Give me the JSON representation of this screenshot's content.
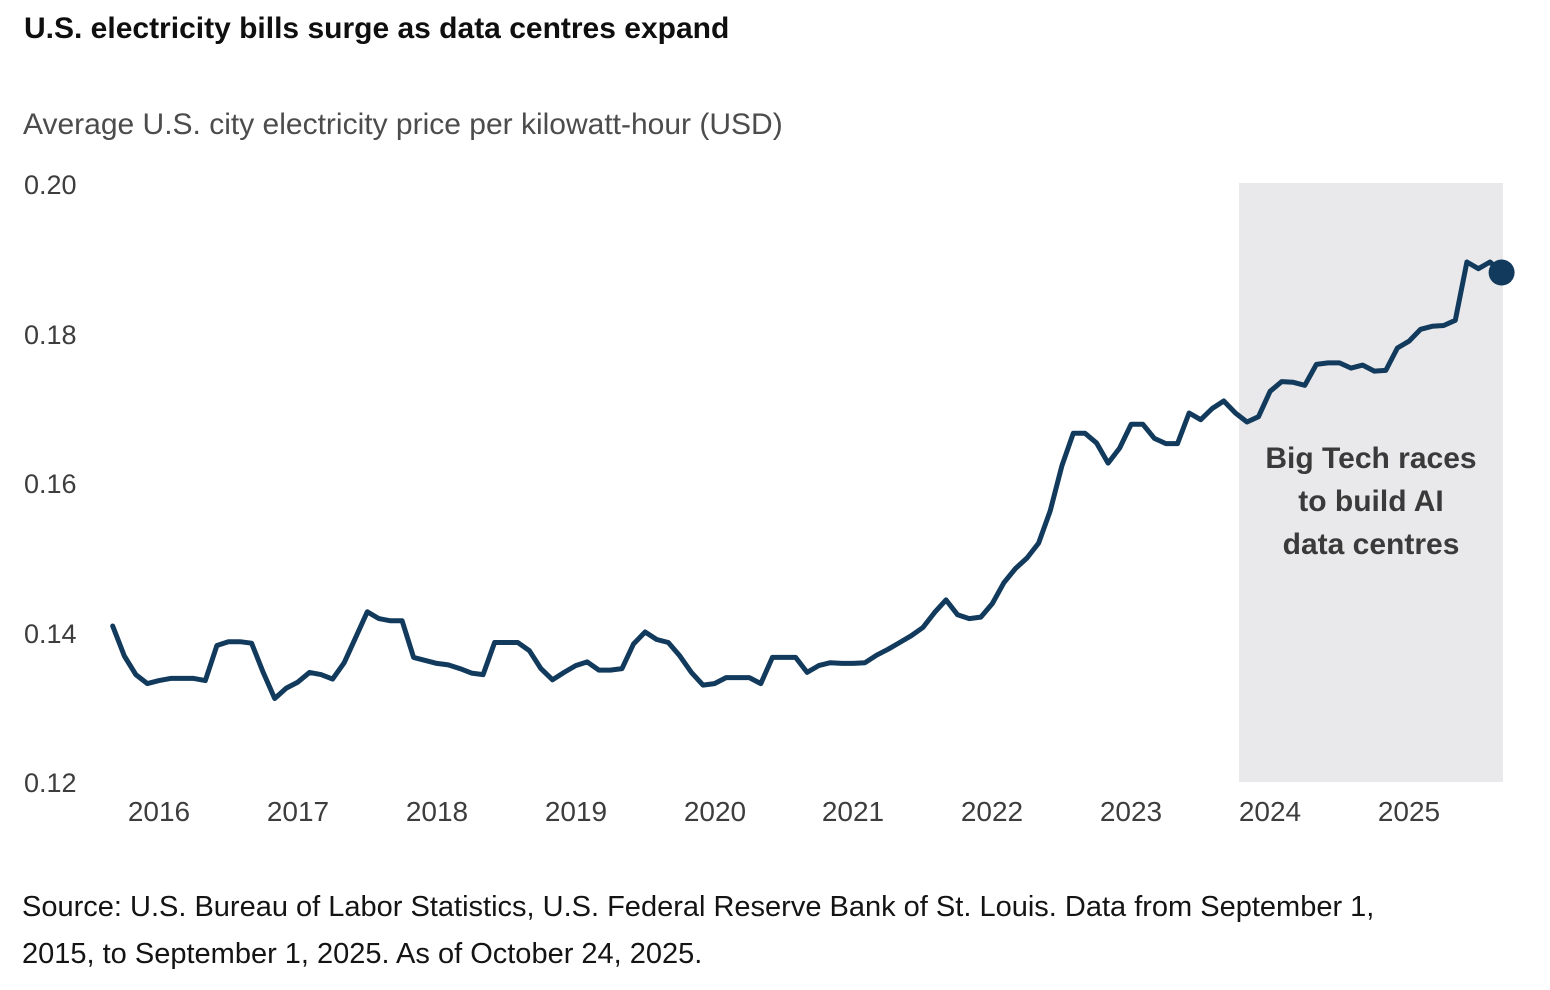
{
  "header": {
    "title": "U.S. electricity bills surge as data centres expand",
    "subtitle": "Average U.S. city electricity price per kilowatt-hour (USD)"
  },
  "annotation": {
    "text": "Big Tech races\nto build AI\ndata centres"
  },
  "source": {
    "text": "Source: U.S. Bureau of Labor Statistics, U.S. Federal Reserve Bank of St. Louis. Data from September 1,\n2015, to September 1, 2025. As of October 24, 2025."
  },
  "chart_data": {
    "type": "line",
    "title": "U.S. electricity bills surge as data centres expand",
    "ylabel": "Average U.S. city electricity price per kilowatt-hour (USD)",
    "xlabel": "",
    "grid": false,
    "legend": "none",
    "ylim": [
      0.12,
      0.2
    ],
    "y_tick_values": [
      0.2,
      0.18,
      0.16,
      0.14,
      0.12
    ],
    "y_tick_labels": [
      "0.20",
      "0.18",
      "0.16",
      "0.14",
      "0.12"
    ],
    "x_tick_labels": [
      "2016",
      "2017",
      "2018",
      "2019",
      "2020",
      "2021",
      "2022",
      "2023",
      "2024",
      "2025"
    ],
    "start_month": "2015-09",
    "end_month": "2025-09",
    "cadence": "monthly",
    "series": [
      {
        "name": "Average U.S. city electricity price per kilowatt-hour (USD)",
        "monthly_values": [
          0.141,
          0.137,
          0.1345,
          0.1333,
          0.1337,
          0.134,
          0.134,
          0.134,
          0.1337,
          0.1384,
          0.1389,
          0.1389,
          0.1387,
          0.1348,
          0.1313,
          0.1327,
          0.1335,
          0.1348,
          0.1345,
          0.1339,
          0.1361,
          0.1395,
          0.1429,
          0.142,
          0.1417,
          0.1417,
          0.1368,
          0.1364,
          0.136,
          0.1358,
          0.1353,
          0.1347,
          0.1345,
          0.1388,
          0.1388,
          0.1388,
          0.1377,
          0.1353,
          0.1338,
          0.1348,
          0.1357,
          0.1362,
          0.1351,
          0.1351,
          0.1353,
          0.1386,
          0.1402,
          0.1392,
          0.1388,
          0.137,
          0.1348,
          0.1331,
          0.1333,
          0.1341,
          0.1341,
          0.1341,
          0.1333,
          0.1368,
          0.1368,
          0.1368,
          0.1348,
          0.1357,
          0.1361,
          0.136,
          0.136,
          0.1361,
          0.1371,
          0.1379,
          0.1388,
          0.1397,
          0.1408,
          0.1428,
          0.1445,
          0.1425,
          0.142,
          0.1422,
          0.144,
          0.1468,
          0.1487,
          0.1501,
          0.1521,
          0.1564,
          0.1624,
          0.1668,
          0.1668,
          0.1655,
          0.1628,
          0.1648,
          0.168,
          0.168,
          0.1661,
          0.1654,
          0.1654,
          0.1695,
          0.1686,
          0.1701,
          0.1711,
          0.1695,
          0.1683,
          0.169,
          0.1724,
          0.1737,
          0.1736,
          0.1732,
          0.176,
          0.1762,
          0.1762,
          0.1755,
          0.1759,
          0.1751,
          0.1752,
          0.1782,
          0.1791,
          0.1807,
          0.1811,
          0.1812,
          0.1819,
          0.1897,
          0.1888,
          0.1897,
          0.1883
        ]
      }
    ],
    "end_marker": {
      "month": "2025-09",
      "value": 0.1883
    },
    "highlight_region": {
      "label": "Big Tech races to build AI data centres",
      "start": "2023-10",
      "end": "2025-09"
    },
    "colors": {
      "line": "#123A5D",
      "marker": "#123A5D",
      "highlight_band": "#E9E9EB",
      "title": "#0f0f0f",
      "subtitle": "#4c4c4c",
      "ticks": "#3d3d3d",
      "annotation": "#3a3a3a"
    }
  }
}
